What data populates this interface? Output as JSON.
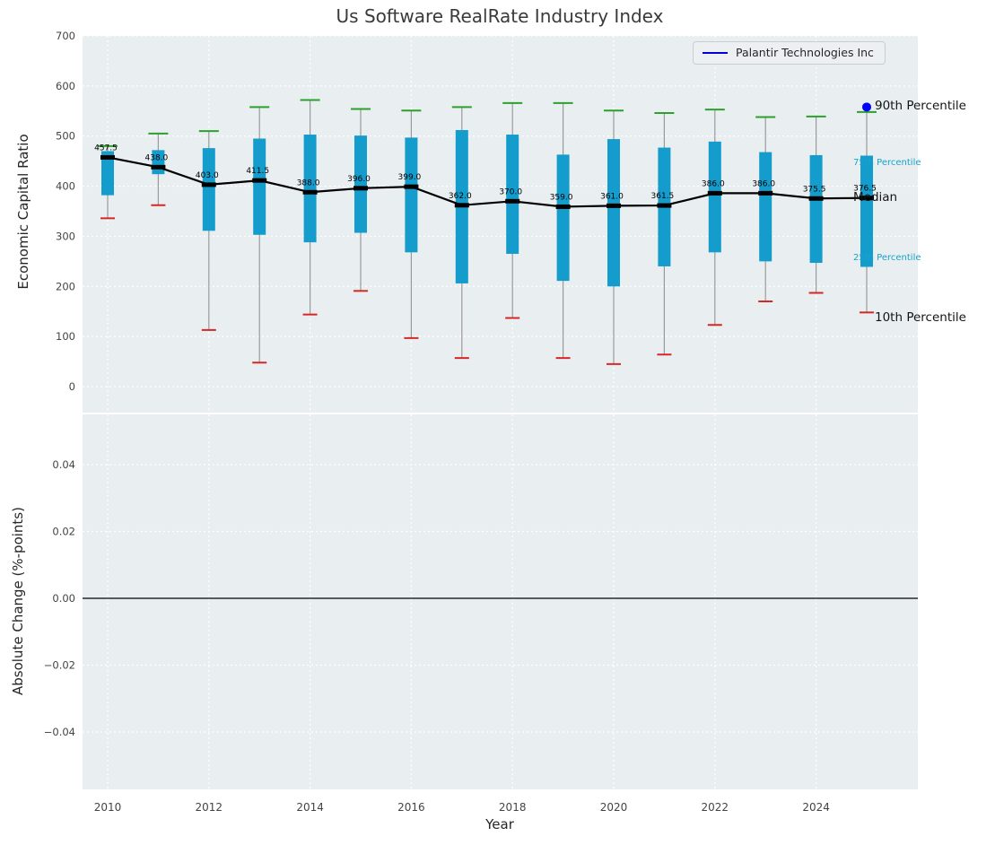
{
  "legend": {
    "label": "Palantir Technologies Inc"
  },
  "annotations": {
    "p90": "90th Percentile",
    "p75": "75th Percentile",
    "median": "Median",
    "p25": "25th Percentile",
    "p10": "10th Percentile"
  },
  "chart_data": {
    "type": "box",
    "title": "Us Software RealRate Industry Index",
    "xlabel": "Year",
    "ylabel_top": "Economic Capital Ratio",
    "ylabel_bottom": "Absolute Change (%-points)",
    "years": [
      2010,
      2011,
      2012,
      2013,
      2014,
      2015,
      2016,
      2017,
      2018,
      2019,
      2020,
      2021,
      2022,
      2023,
      2024,
      2025
    ],
    "series": {
      "median": [
        457.5,
        438.0,
        403.0,
        411.5,
        388.0,
        396.0,
        399.0,
        362.0,
        370.0,
        359.0,
        361.0,
        361.5,
        386.0,
        386.0,
        375.5,
        376.5
      ],
      "q75": [
        470,
        472,
        476,
        495,
        503,
        501,
        497,
        512,
        503,
        463,
        494,
        477,
        489,
        468,
        462,
        461
      ],
      "q25": [
        382,
        424,
        311,
        303,
        288,
        307,
        268,
        206,
        265,
        211,
        200,
        240,
        268,
        250,
        247,
        239
      ],
      "p90": [
        480,
        505,
        510,
        558,
        572,
        554,
        551,
        558,
        566,
        566,
        551,
        546,
        553,
        538,
        539,
        548
      ],
      "p10": [
        336,
        362,
        113,
        48,
        144,
        191,
        97,
        57,
        137,
        57,
        45,
        64,
        123,
        170,
        187,
        148
      ]
    },
    "palantir": {
      "name": "Palantir Technologies Inc",
      "year": 2025,
      "value": 558
    },
    "top_axis": {
      "yticks": [
        0,
        100,
        200,
        300,
        400,
        500,
        600,
        700
      ],
      "ylim": [
        -52,
        700
      ]
    },
    "bottom_axis": {
      "yticks": [
        -0.04,
        -0.02,
        0,
        0.02,
        0.04
      ],
      "ylim": [
        -0.0575,
        0.055
      ],
      "zero_line": 0
    },
    "xticks": [
      2010,
      2012,
      2014,
      2016,
      2018,
      2020,
      2022,
      2024
    ],
    "legend_position": "upper right",
    "grid": true,
    "colors": {
      "box": "#149ccc",
      "p90_cap": "#2ca02c",
      "p10_cap": "#d62728",
      "median": "#000000",
      "palantir": "#0000ff",
      "grid": "#ffffff",
      "plot_bg": "#e9eef0",
      "whisker": "#9a9a9a",
      "tick_text": "#444444",
      "annotation_cyan": "#19a3cb"
    }
  }
}
